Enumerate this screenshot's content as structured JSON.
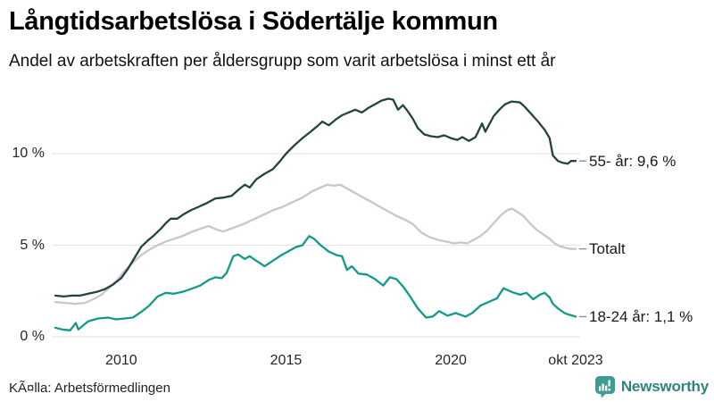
{
  "header": {
    "title": "Långtidsarbetslösa i Södertälje kommun",
    "subtitle": "Andel av arbetskraften per åldersgrupp som varit arbetslösa i minst ett år"
  },
  "footer": {
    "source": "KÃ¤lla: Arbetsförmedlingen",
    "brand": "Newsworthy",
    "brand_icon": "bar-chart-speech-bubble-icon",
    "brand_icon_color": "#3f9c94",
    "brand_text_color": "#2f857c"
  },
  "colors": {
    "background": "#ffffff",
    "gridline": "#e2e1e6",
    "tick_text": "#262626",
    "label_text": "#191919",
    "series_55": "#21453c",
    "series_total": "#c7c5d2",
    "series_1824": "#13998a"
  },
  "chart_data": {
    "type": "line",
    "title": "Långtidsarbetslösa i Södertälje kommun",
    "subtitle": "Andel av arbetskraften per åldersgrupp som varit arbetslösa i minst ett år",
    "xlabel": "",
    "ylabel": "",
    "x_unit": "year (monthly data, jan 2008 – okt 2023)",
    "x_range": [
      2008.0,
      2023.79
    ],
    "ylim": [
      0,
      13.5
    ],
    "grid": "horizontal",
    "legend_position": "end-of-line labels, right side",
    "y_ticks": [
      {
        "value": 0,
        "label": "0 %"
      },
      {
        "value": 5,
        "label": "5 %"
      },
      {
        "value": 10,
        "label": "10 %"
      }
    ],
    "x_ticks": [
      {
        "value": 2010,
        "label": "2010"
      },
      {
        "value": 2015,
        "label": "2015"
      },
      {
        "value": 2020,
        "label": "2020"
      },
      {
        "value": 2023.79,
        "label": "okt 2023"
      }
    ],
    "series": [
      {
        "name": "55- år",
        "end_label": "55- år: 9,6 %",
        "last_value": 9.6,
        "color": "#21453c",
        "points": [
          [
            2008.0,
            2.25
          ],
          [
            2008.25,
            2.2
          ],
          [
            2008.5,
            2.25
          ],
          [
            2008.75,
            2.25
          ],
          [
            2009.0,
            2.35
          ],
          [
            2009.25,
            2.45
          ],
          [
            2009.5,
            2.6
          ],
          [
            2009.75,
            2.85
          ],
          [
            2010.0,
            3.2
          ],
          [
            2010.2,
            3.7
          ],
          [
            2010.4,
            4.3
          ],
          [
            2010.6,
            4.9
          ],
          [
            2010.8,
            5.25
          ],
          [
            2011.0,
            5.55
          ],
          [
            2011.2,
            5.9
          ],
          [
            2011.35,
            6.2
          ],
          [
            2011.5,
            6.45
          ],
          [
            2011.7,
            6.45
          ],
          [
            2011.9,
            6.7
          ],
          [
            2012.1,
            6.9
          ],
          [
            2012.35,
            7.1
          ],
          [
            2012.6,
            7.3
          ],
          [
            2012.85,
            7.55
          ],
          [
            2013.1,
            7.6
          ],
          [
            2013.35,
            7.7
          ],
          [
            2013.6,
            8.1
          ],
          [
            2013.75,
            8.3
          ],
          [
            2013.9,
            8.15
          ],
          [
            2014.1,
            8.6
          ],
          [
            2014.35,
            8.9
          ],
          [
            2014.6,
            9.15
          ],
          [
            2014.8,
            9.55
          ],
          [
            2015.0,
            10.0
          ],
          [
            2015.25,
            10.45
          ],
          [
            2015.5,
            10.85
          ],
          [
            2015.75,
            11.2
          ],
          [
            2015.95,
            11.5
          ],
          [
            2016.1,
            11.75
          ],
          [
            2016.3,
            11.55
          ],
          [
            2016.5,
            11.85
          ],
          [
            2016.7,
            12.1
          ],
          [
            2016.9,
            12.25
          ],
          [
            2017.1,
            12.4
          ],
          [
            2017.3,
            12.25
          ],
          [
            2017.5,
            12.5
          ],
          [
            2017.7,
            12.7
          ],
          [
            2017.9,
            12.9
          ],
          [
            2018.1,
            13.0
          ],
          [
            2018.25,
            12.95
          ],
          [
            2018.4,
            12.4
          ],
          [
            2018.55,
            12.65
          ],
          [
            2018.7,
            12.3
          ],
          [
            2018.85,
            11.9
          ],
          [
            2019.0,
            11.4
          ],
          [
            2019.2,
            11.05
          ],
          [
            2019.4,
            10.95
          ],
          [
            2019.6,
            10.9
          ],
          [
            2019.8,
            11.0
          ],
          [
            2020.0,
            10.85
          ],
          [
            2020.2,
            10.75
          ],
          [
            2020.35,
            10.9
          ],
          [
            2020.55,
            10.7
          ],
          [
            2020.75,
            10.9
          ],
          [
            2020.95,
            11.65
          ],
          [
            2021.05,
            11.2
          ],
          [
            2021.3,
            12.05
          ],
          [
            2021.5,
            12.45
          ],
          [
            2021.65,
            12.7
          ],
          [
            2021.85,
            12.85
          ],
          [
            2022.1,
            12.8
          ],
          [
            2022.25,
            12.55
          ],
          [
            2022.45,
            12.15
          ],
          [
            2022.65,
            11.75
          ],
          [
            2022.85,
            11.3
          ],
          [
            2023.0,
            10.85
          ],
          [
            2023.1,
            9.9
          ],
          [
            2023.25,
            9.6
          ],
          [
            2023.4,
            9.5
          ],
          [
            2023.55,
            9.45
          ],
          [
            2023.65,
            9.6
          ],
          [
            2023.79,
            9.6
          ]
        ]
      },
      {
        "name": "Totalt",
        "end_label": "Totalt",
        "last_value": 4.8,
        "color": "#c7c5d2",
        "points": [
          [
            2008.0,
            1.9
          ],
          [
            2008.3,
            1.85
          ],
          [
            2008.6,
            1.8
          ],
          [
            2008.9,
            1.85
          ],
          [
            2009.15,
            2.05
          ],
          [
            2009.4,
            2.3
          ],
          [
            2009.65,
            2.7
          ],
          [
            2009.9,
            3.15
          ],
          [
            2010.1,
            3.6
          ],
          [
            2010.35,
            4.05
          ],
          [
            2010.6,
            4.45
          ],
          [
            2010.85,
            4.75
          ],
          [
            2011.1,
            5.0
          ],
          [
            2011.35,
            5.2
          ],
          [
            2011.6,
            5.35
          ],
          [
            2011.85,
            5.5
          ],
          [
            2012.1,
            5.7
          ],
          [
            2012.4,
            5.9
          ],
          [
            2012.65,
            6.05
          ],
          [
            2012.9,
            5.85
          ],
          [
            2013.1,
            5.75
          ],
          [
            2013.4,
            5.95
          ],
          [
            2013.7,
            6.15
          ],
          [
            2014.0,
            6.4
          ],
          [
            2014.3,
            6.65
          ],
          [
            2014.6,
            6.9
          ],
          [
            2014.9,
            7.1
          ],
          [
            2015.2,
            7.35
          ],
          [
            2015.5,
            7.6
          ],
          [
            2015.8,
            7.95
          ],
          [
            2016.05,
            8.15
          ],
          [
            2016.25,
            8.3
          ],
          [
            2016.45,
            8.25
          ],
          [
            2016.65,
            8.3
          ],
          [
            2016.85,
            8.1
          ],
          [
            2017.1,
            7.85
          ],
          [
            2017.35,
            7.6
          ],
          [
            2017.6,
            7.35
          ],
          [
            2017.85,
            7.1
          ],
          [
            2018.1,
            6.85
          ],
          [
            2018.35,
            6.6
          ],
          [
            2018.6,
            6.4
          ],
          [
            2018.85,
            6.15
          ],
          [
            2019.1,
            5.7
          ],
          [
            2019.35,
            5.45
          ],
          [
            2019.6,
            5.3
          ],
          [
            2019.85,
            5.2
          ],
          [
            2020.1,
            5.1
          ],
          [
            2020.3,
            5.15
          ],
          [
            2020.5,
            5.1
          ],
          [
            2020.7,
            5.3
          ],
          [
            2020.9,
            5.5
          ],
          [
            2021.1,
            5.8
          ],
          [
            2021.3,
            6.2
          ],
          [
            2021.5,
            6.6
          ],
          [
            2021.7,
            6.9
          ],
          [
            2021.85,
            7.0
          ],
          [
            2022.0,
            6.85
          ],
          [
            2022.2,
            6.6
          ],
          [
            2022.4,
            6.2
          ],
          [
            2022.6,
            5.85
          ],
          [
            2022.8,
            5.6
          ],
          [
            2023.0,
            5.35
          ],
          [
            2023.15,
            5.1
          ],
          [
            2023.3,
            4.95
          ],
          [
            2023.5,
            4.85
          ],
          [
            2023.65,
            4.8
          ],
          [
            2023.79,
            4.8
          ]
        ]
      },
      {
        "name": "18-24 år",
        "end_label": "18-24 år: 1,1 %",
        "last_value": 1.1,
        "color": "#13998a",
        "points": [
          [
            2008.0,
            0.5
          ],
          [
            2008.2,
            0.4
          ],
          [
            2008.45,
            0.35
          ],
          [
            2008.62,
            0.75
          ],
          [
            2008.7,
            0.4
          ],
          [
            2009.0,
            0.85
          ],
          [
            2009.3,
            1.0
          ],
          [
            2009.6,
            1.05
          ],
          [
            2009.85,
            0.95
          ],
          [
            2010.1,
            1.0
          ],
          [
            2010.35,
            1.05
          ],
          [
            2010.6,
            1.35
          ],
          [
            2010.85,
            1.7
          ],
          [
            2011.1,
            2.2
          ],
          [
            2011.35,
            2.4
          ],
          [
            2011.6,
            2.35
          ],
          [
            2011.85,
            2.45
          ],
          [
            2012.1,
            2.6
          ],
          [
            2012.4,
            2.8
          ],
          [
            2012.65,
            3.1
          ],
          [
            2012.85,
            3.25
          ],
          [
            2013.05,
            3.2
          ],
          [
            2013.2,
            3.5
          ],
          [
            2013.4,
            4.4
          ],
          [
            2013.55,
            4.5
          ],
          [
            2013.75,
            4.25
          ],
          [
            2013.9,
            4.4
          ],
          [
            2014.1,
            4.15
          ],
          [
            2014.35,
            3.85
          ],
          [
            2014.6,
            4.15
          ],
          [
            2014.85,
            4.45
          ],
          [
            2015.05,
            4.65
          ],
          [
            2015.3,
            4.9
          ],
          [
            2015.5,
            5.0
          ],
          [
            2015.7,
            5.5
          ],
          [
            2015.85,
            5.35
          ],
          [
            2016.05,
            5.0
          ],
          [
            2016.3,
            4.65
          ],
          [
            2016.55,
            4.45
          ],
          [
            2016.7,
            4.4
          ],
          [
            2016.85,
            3.65
          ],
          [
            2017.0,
            3.85
          ],
          [
            2017.2,
            3.45
          ],
          [
            2017.45,
            3.4
          ],
          [
            2017.7,
            3.15
          ],
          [
            2017.95,
            2.8
          ],
          [
            2018.15,
            3.25
          ],
          [
            2018.35,
            3.15
          ],
          [
            2018.55,
            2.75
          ],
          [
            2018.75,
            2.25
          ],
          [
            2019.0,
            1.55
          ],
          [
            2019.25,
            1.05
          ],
          [
            2019.45,
            1.1
          ],
          [
            2019.65,
            1.4
          ],
          [
            2019.9,
            1.15
          ],
          [
            2020.15,
            1.3
          ],
          [
            2020.45,
            1.1
          ],
          [
            2020.65,
            1.3
          ],
          [
            2020.9,
            1.7
          ],
          [
            2021.15,
            1.9
          ],
          [
            2021.4,
            2.1
          ],
          [
            2021.6,
            2.65
          ],
          [
            2021.85,
            2.45
          ],
          [
            2022.1,
            2.3
          ],
          [
            2022.3,
            2.4
          ],
          [
            2022.5,
            2.05
          ],
          [
            2022.7,
            2.3
          ],
          [
            2022.85,
            2.4
          ],
          [
            2023.0,
            2.15
          ],
          [
            2023.1,
            1.8
          ],
          [
            2023.25,
            1.55
          ],
          [
            2023.45,
            1.3
          ],
          [
            2023.6,
            1.2
          ],
          [
            2023.79,
            1.1
          ]
        ]
      }
    ]
  }
}
